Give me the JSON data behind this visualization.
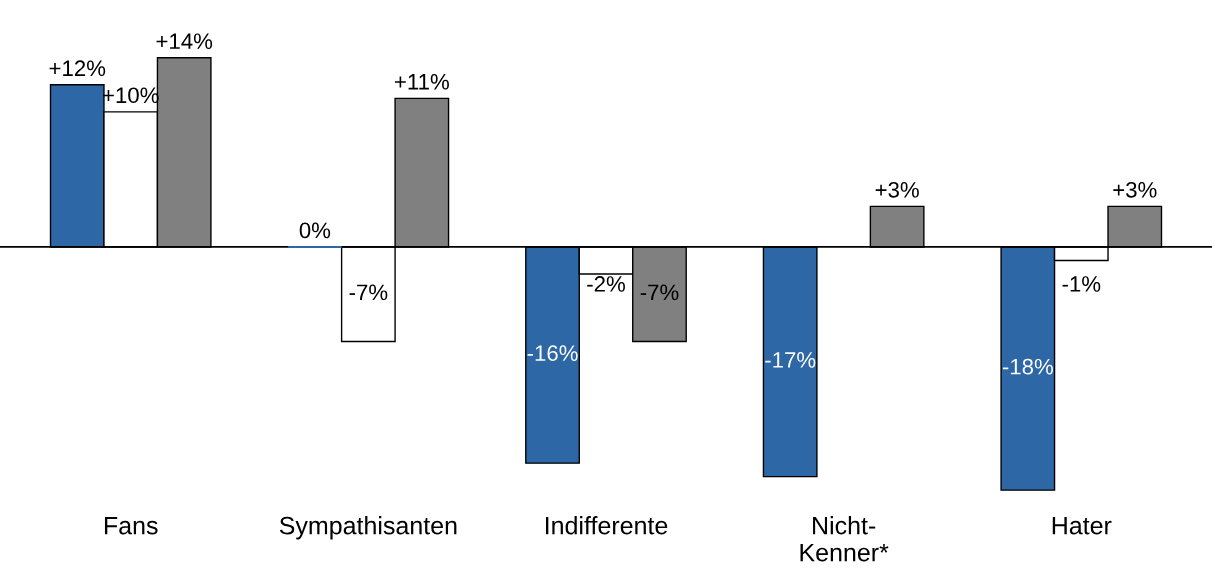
{
  "chart_data": {
    "type": "bar",
    "categories": [
      "Fans",
      "Sympathisanten",
      "Indifferente",
      "Nicht-\nKenner*",
      "Hater"
    ],
    "series": [
      {
        "color": "#2e67a6",
        "values": [
          12,
          0,
          -16,
          -17,
          -18
        ],
        "value_labels": [
          "+12%",
          "0%",
          "-16%",
          "-17%",
          "-18%"
        ]
      },
      {
        "color": "#ffffff",
        "values": [
          10,
          -7,
          -2,
          null,
          -1
        ],
        "value_labels": [
          "+10%",
          "-7%",
          "-2%",
          null,
          "-1%"
        ]
      },
      {
        "color": "#808080",
        "values": [
          14,
          11,
          -7,
          3,
          3
        ],
        "value_labels": [
          "+14%",
          "+11%",
          "-7%",
          "+3%",
          "+3%"
        ]
      }
    ]
  }
}
